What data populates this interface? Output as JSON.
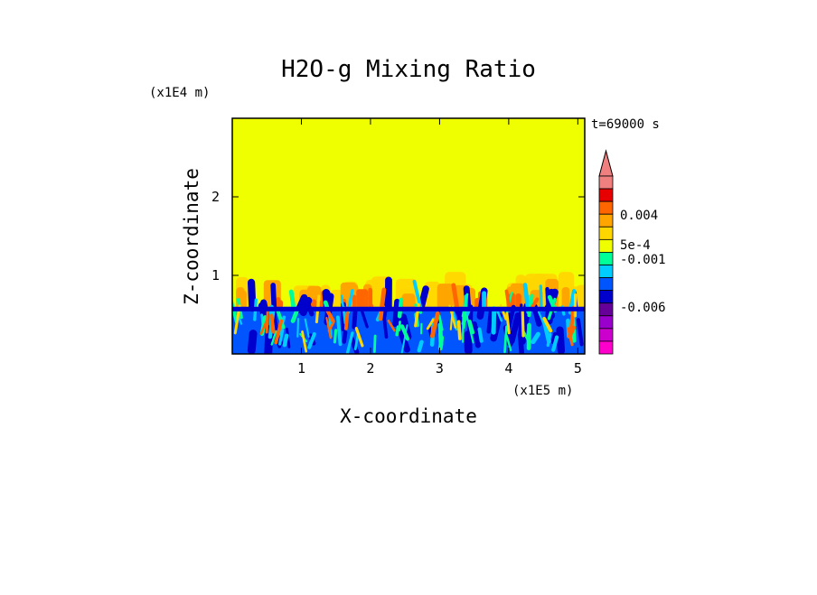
{
  "chart_data": {
    "type": "heatmap",
    "title": "H2O-g Mixing Ratio",
    "xlabel": "X-coordinate",
    "ylabel": "Z-coordinate",
    "x_multiplier": "(x1E5 m)",
    "y_multiplier": "(x1E4 m)",
    "time_label": "t=69000 s",
    "xlim": [
      0,
      5.1
    ],
    "ylim": [
      0,
      3.0
    ],
    "x_ticks": [
      "1",
      "2",
      "3",
      "4",
      "5"
    ],
    "y_ticks": [
      "1",
      "2"
    ],
    "background_value_color": "#f0ff00",
    "boundary_layer_top": 0.6,
    "plume_region_top": 1.05,
    "colorbar": {
      "labels": [
        "0.004",
        "5e-4",
        "-0.001",
        "-0.006"
      ],
      "levels_top_to_bottom": [
        {
          "color": "#f08080"
        },
        {
          "color": "#e60000"
        },
        {
          "color": "#ff6600"
        },
        {
          "color": "#ffa500"
        },
        {
          "color": "#ffd700"
        },
        {
          "color": "#f0ff00"
        },
        {
          "color": "#00ff99"
        },
        {
          "color": "#00ccff"
        },
        {
          "color": "#0055ff"
        },
        {
          "color": "#0000cc"
        },
        {
          "color": "#660099"
        },
        {
          "color": "#9900cc"
        },
        {
          "color": "#cc00cc"
        },
        {
          "color": "#ff00cc"
        }
      ]
    }
  }
}
